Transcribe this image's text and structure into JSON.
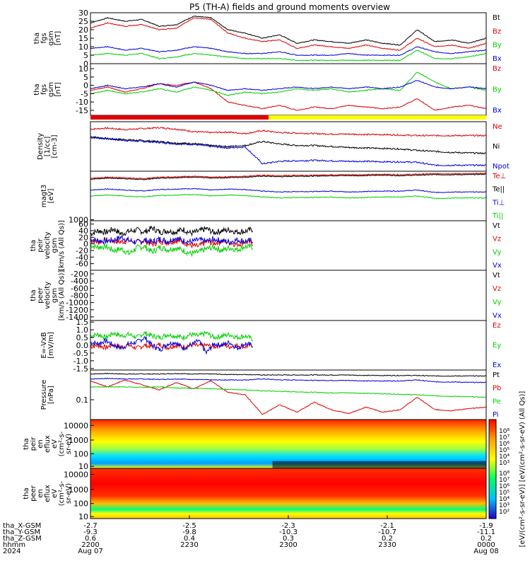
{
  "title": "P5 (TH-A) fields and ground moments overview",
  "colors": {
    "black": "#000000",
    "red": "#e00000",
    "blue": "#0000e0",
    "green": "#00d000",
    "yellow": "#ffff00"
  },
  "chart_data": [
    {
      "type": "line",
      "id": "fgs-gsm-total",
      "ylabel": [
        "tha",
        "fgs",
        "gsm",
        "[nT]"
      ],
      "yticks": [
        "30",
        "25",
        "20",
        "15",
        "10",
        "5",
        "0"
      ],
      "ylim": [
        0,
        30
      ],
      "series": [
        {
          "name": "Bt",
          "color": "#000000",
          "values": [
            24,
            27,
            25,
            26,
            22,
            23,
            28,
            27,
            20,
            18,
            15,
            17,
            12,
            14,
            13,
            12,
            14,
            12,
            11,
            20,
            13,
            14,
            12,
            15
          ]
        },
        {
          "name": "Bz",
          "color": "#e00000",
          "values": [
            21,
            24,
            22,
            23,
            20,
            21,
            27,
            26,
            18,
            15,
            13,
            14,
            9,
            11,
            10,
            9,
            11,
            9,
            8,
            15,
            10,
            11,
            9,
            12
          ]
        },
        {
          "name": "By",
          "color": "#00d000",
          "values": [
            5,
            6,
            5,
            6,
            3,
            4,
            6,
            5,
            4,
            3,
            3,
            3,
            2,
            2,
            2,
            2,
            2,
            2,
            2,
            8,
            3,
            3,
            4,
            6
          ]
        },
        {
          "name": "Bx",
          "color": "#0000e0",
          "values": [
            9,
            10,
            8,
            9,
            7,
            8,
            10,
            9,
            7,
            6,
            6,
            7,
            5,
            5,
            5,
            6,
            5,
            5,
            5,
            10,
            7,
            6,
            7,
            8
          ]
        }
      ]
    },
    {
      "type": "line",
      "id": "fgs-gsm-components",
      "ylabel": [
        "tha",
        "fgs",
        "gsm",
        "[nT]"
      ],
      "yticks": [
        "10",
        "5",
        "0",
        "-5",
        "-10",
        "-15"
      ],
      "ylim": [
        -18,
        13
      ],
      "series": [
        {
          "name": "Bz",
          "color": "#e00000",
          "values": [
            -3,
            -1,
            -4,
            -2,
            1,
            0,
            2,
            -2,
            -10,
            -12,
            -14,
            -12,
            -15,
            -13,
            -14,
            -12,
            -13,
            -14,
            -13,
            -8,
            -15,
            -13,
            -12,
            -14
          ]
        },
        {
          "name": "By",
          "color": "#00d000",
          "values": [
            -5,
            -3,
            -5,
            -4,
            -2,
            -4,
            -1,
            -3,
            -6,
            -4,
            -5,
            -4,
            -2,
            -3,
            -2,
            -4,
            -3,
            -2,
            -3,
            8,
            2,
            -2,
            -1,
            -3
          ]
        },
        {
          "name": "Bx",
          "color": "#0000e0",
          "values": [
            -2,
            0,
            -2,
            -1,
            1,
            -1,
            2,
            0,
            -3,
            -2,
            -3,
            -2,
            -1,
            -2,
            -1,
            -2,
            -1,
            -2,
            -1,
            3,
            -1,
            -2,
            -1,
            -2
          ]
        }
      ]
    },
    {
      "type": "line",
      "id": "density",
      "ylabel": [
        "Density",
        "[1/cc]",
        "[cm-3]"
      ],
      "yticks": [],
      "series": [
        {
          "name": "Ne",
          "color": "#e00000",
          "values": [
            0.85,
            0.87,
            0.84,
            0.86,
            0.88,
            0.85,
            0.8,
            0.78,
            0.79,
            0.76,
            0.82,
            0.78,
            0.77,
            0.76,
            0.75,
            0.75,
            0.74,
            0.74,
            0.73,
            0.72,
            0.72,
            0.72,
            0.72,
            0.72
          ]
        },
        {
          "name": "Ni",
          "color": "#000000",
          "values": [
            0.7,
            0.66,
            0.64,
            0.62,
            0.6,
            0.57,
            0.56,
            0.52,
            0.5,
            0.52,
            0.6,
            0.55,
            0.52,
            0.52,
            0.5,
            0.48,
            0.47,
            0.46,
            0.45,
            0.42,
            0.4,
            0.38,
            0.37,
            0.36
          ]
        },
        {
          "name": "Npot",
          "color": "#0000e0",
          "values": [
            0.68,
            0.65,
            0.62,
            0.6,
            0.58,
            0.55,
            0.54,
            0.5,
            0.47,
            0.49,
            0.15,
            0.2,
            0.21,
            0.22,
            0.21,
            0.2,
            0.2,
            0.19,
            0.19,
            0.18,
            0.12,
            0.12,
            0.12,
            0.12
          ]
        }
      ]
    },
    {
      "type": "line",
      "id": "temperature",
      "ylabel": [
        "magt3",
        "[eV]"
      ],
      "yticks": [
        "1000"
      ],
      "series": [
        {
          "name": "Te⊥",
          "color": "#e00000",
          "values": [
            0.86,
            0.88,
            0.87,
            0.85,
            0.88,
            0.89,
            0.9,
            0.88,
            0.89,
            0.9,
            0.92,
            0.91,
            0.92,
            0.92,
            0.93,
            0.93,
            0.93,
            0.94,
            0.93,
            0.94,
            0.95,
            0.95,
            0.95,
            0.96
          ]
        },
        {
          "name": "Te||",
          "color": "#000000",
          "values": [
            0.84,
            0.86,
            0.85,
            0.83,
            0.86,
            0.87,
            0.88,
            0.86,
            0.87,
            0.88,
            0.9,
            0.89,
            0.9,
            0.9,
            0.91,
            0.91,
            0.91,
            0.92,
            0.91,
            0.92,
            0.93,
            0.93,
            0.93,
            0.94
          ]
        },
        {
          "name": "Ti⊥",
          "color": "#0000e0",
          "values": [
            0.62,
            0.64,
            0.62,
            0.6,
            0.63,
            0.64,
            0.65,
            0.62,
            0.64,
            0.63,
            0.6,
            0.58,
            0.59,
            0.59,
            0.6,
            0.58,
            0.59,
            0.6,
            0.6,
            0.62,
            0.57,
            0.58,
            0.58,
            0.58
          ]
        },
        {
          "name": "Ti||",
          "color": "#00d000",
          "values": [
            0.5,
            0.52,
            0.5,
            0.48,
            0.51,
            0.52,
            0.53,
            0.5,
            0.52,
            0.51,
            0.48,
            0.46,
            0.47,
            0.47,
            0.48,
            0.46,
            0.47,
            0.48,
            0.48,
            0.5,
            0.45,
            0.46,
            0.46,
            0.46
          ]
        }
      ]
    },
    {
      "type": "line",
      "id": "peir-velocity",
      "ylabel": [
        "tha",
        "peir",
        "velocity",
        "gsm",
        "[km/s (All Qs)]"
      ],
      "yticks": [
        "60",
        "40",
        "20",
        "0",
        "-20",
        "-40",
        "-60"
      ],
      "ylim": [
        -80,
        70
      ],
      "x_end_fraction": 0.41,
      "series": [
        {
          "name": "Vt",
          "color": "#000000",
          "values": [
            30,
            40,
            35,
            45,
            30,
            38,
            42,
            36,
            48,
            35,
            40,
            36,
            44,
            32,
            38,
            46,
            34,
            40,
            42,
            36,
            38,
            44
          ]
        },
        {
          "name": "Vz",
          "color": "#e00000",
          "values": [
            10,
            5,
            12,
            8,
            6,
            10,
            4,
            9,
            -2,
            8,
            4,
            10,
            6,
            -5,
            -8,
            6,
            2,
            8,
            4,
            -2,
            6,
            2
          ]
        },
        {
          "name": "Vy",
          "color": "#00d000",
          "values": [
            -5,
            -10,
            -8,
            -20,
            -15,
            -30,
            -12,
            -8,
            -25,
            -10,
            -18,
            -12,
            -20,
            -30,
            -25,
            -15,
            -10,
            -20,
            -12,
            -18,
            -8,
            -10
          ]
        },
        {
          "name": "Vx",
          "color": "#0000e0",
          "values": [
            15,
            10,
            8,
            12,
            20,
            10,
            5,
            12,
            6,
            15,
            8,
            18,
            10,
            6,
            12,
            8,
            14,
            10,
            6,
            12,
            8,
            10
          ]
        }
      ]
    },
    {
      "type": "line",
      "id": "peer-velocity",
      "ylabel": [
        "tha",
        "peer",
        "velocity",
        "gsm",
        "[km/s (All Qs)]"
      ],
      "yticks": [
        "-200",
        "-400",
        "-600",
        "-800",
        "-1000",
        "-1200",
        "-1400"
      ],
      "series": [
        {
          "name": "Vt",
          "color": "#000000",
          "values": []
        },
        {
          "name": "Vz",
          "color": "#e00000",
          "values": []
        },
        {
          "name": "Vy",
          "color": "#00d000",
          "values": []
        },
        {
          "name": "Vx",
          "color": "#0000e0",
          "values": []
        }
      ]
    },
    {
      "type": "line",
      "id": "e-field",
      "ylabel": [
        "E=-VxB",
        "[mV/m]"
      ],
      "yticks": [
        "1.5",
        "1.0",
        "0.5",
        "0.0",
        "-0.5",
        "-1.0",
        "-1.5"
      ],
      "ylim": [
        -1.6,
        1.6
      ],
      "x_end_fraction": 0.41,
      "series": [
        {
          "name": "Ez",
          "color": "#e00000",
          "values": [
            -0.1,
            0.0,
            -0.15,
            0.05,
            -0.1,
            0.0,
            -0.2,
            0.0,
            -0.1,
            0.05,
            -0.15,
            0.0,
            -0.1,
            0.05,
            -0.05,
            0.0,
            -0.1,
            0.05,
            -0.1,
            0.0,
            -0.1,
            0.0
          ]
        },
        {
          "name": "Ey",
          "color": "#00d000",
          "values": [
            0.6,
            0.7,
            0.5,
            0.8,
            0.6,
            0.7,
            0.5,
            0.8,
            0.6,
            0.5,
            0.7,
            0.6,
            0.5,
            0.7,
            0.6,
            0.8,
            0.5,
            0.6,
            0.7,
            0.5,
            0.6,
            0.4
          ]
        },
        {
          "name": "Ex",
          "color": "#0000e0",
          "values": [
            0.2,
            0.1,
            0.3,
            0.0,
            -0.2,
            0.1,
            0.2,
            0.5,
            0.0,
            -0.3,
            0.1,
            0.2,
            -0.2,
            0.0,
            0.3,
            -0.5,
            0.1,
            0.0,
            0.2,
            -0.2,
            0.1,
            0.0
          ]
        }
      ]
    },
    {
      "type": "line",
      "id": "pressure",
      "ylabel": [
        "Pressure",
        "[nPa]"
      ],
      "yticks": [
        "0.1"
      ],
      "series": [
        {
          "name": "Pt",
          "color": "#000000",
          "values": [
            0.92,
            0.93,
            0.92,
            0.92,
            0.92,
            0.93,
            0.92,
            0.92,
            0.91,
            0.91,
            0.9,
            0.9,
            0.9,
            0.9,
            0.9,
            0.9,
            0.89,
            0.89,
            0.89,
            0.89,
            0.88,
            0.88,
            0.88,
            0.88
          ]
        },
        {
          "name": "Pb",
          "color": "#e00000",
          "values": [
            0.78,
            0.66,
            0.8,
            0.7,
            0.6,
            0.75,
            0.62,
            0.78,
            0.55,
            0.5,
            0.1,
            0.3,
            0.15,
            0.35,
            0.2,
            0.12,
            0.25,
            0.15,
            0.2,
            0.45,
            0.2,
            0.18,
            0.22,
            0.25
          ]
        },
        {
          "name": "Pe",
          "color": "#00d000",
          "values": [
            0.66,
            0.66,
            0.66,
            0.65,
            0.66,
            0.64,
            0.63,
            0.62,
            0.61,
            0.6,
            0.58,
            0.57,
            0.56,
            0.55,
            0.54,
            0.54,
            0.53,
            0.52,
            0.51,
            0.5,
            0.48,
            0.47,
            0.46,
            0.45
          ]
        },
        {
          "name": "Pi",
          "color": "#0000e0",
          "values": [
            0.82,
            0.83,
            0.82,
            0.82,
            0.81,
            0.82,
            0.81,
            0.8,
            0.8,
            0.8,
            0.82,
            0.8,
            0.8,
            0.79,
            0.79,
            0.79,
            0.78,
            0.78,
            0.78,
            0.8,
            0.76,
            0.76,
            0.75,
            0.75
          ]
        }
      ]
    },
    {
      "type": "heatmap",
      "id": "peir-en-eflux",
      "ylabel": [
        "tha",
        "peir",
        "en",
        "eflux",
        "eV",
        "(cm²-s-",
        "sr-eV)"
      ],
      "yticks": [
        "10000",
        "1000",
        "100",
        "10"
      ]
    },
    {
      "type": "heatmap",
      "id": "peer-en-eflux",
      "ylabel": [
        "tha",
        "peer",
        "en",
        "eflux",
        "eV",
        "(cm²-s-",
        "sr-eV)"
      ],
      "yticks": [
        "10000",
        "1000",
        "100",
        "10"
      ]
    }
  ],
  "colorbar": {
    "label": "[eV/(cm²-s-sr-eV)] [eV/(cm²-s-sr-eV) (All Qs)]",
    "ticks_upper": [
      "10⁸",
      "10⁷",
      "10⁶",
      "10⁵",
      "10⁴",
      "10³"
    ],
    "ticks_lower": [
      "10⁸",
      "10⁷",
      "10⁶",
      "10⁵",
      "10⁴",
      "10³",
      "10²"
    ]
  },
  "x_axis": {
    "row_labels": [
      "tha_X-GSM",
      "tha_Y-GSM",
      "tha_Z-GSM",
      "hhmm",
      "2024"
    ],
    "ticks": [
      {
        "x": "-2.7",
        "y": "-9.3",
        "z": "0.6",
        "hhmm": "2200",
        "date": "Aug 07"
      },
      {
        "x": "-2.5",
        "y": "-9.8",
        "z": "0.4",
        "hhmm": "2230",
        "date": ""
      },
      {
        "x": "-2.3",
        "y": "-10.3",
        "z": "0.3",
        "hhmm": "2300",
        "date": ""
      },
      {
        "x": "-2.1",
        "y": "-10.7",
        "z": "0.2",
        "hhmm": "2330",
        "date": ""
      },
      {
        "x": "-1.9",
        "y": "-11.1",
        "z": "0.2",
        "hhmm": "0000",
        "date": "Aug 08"
      }
    ]
  }
}
